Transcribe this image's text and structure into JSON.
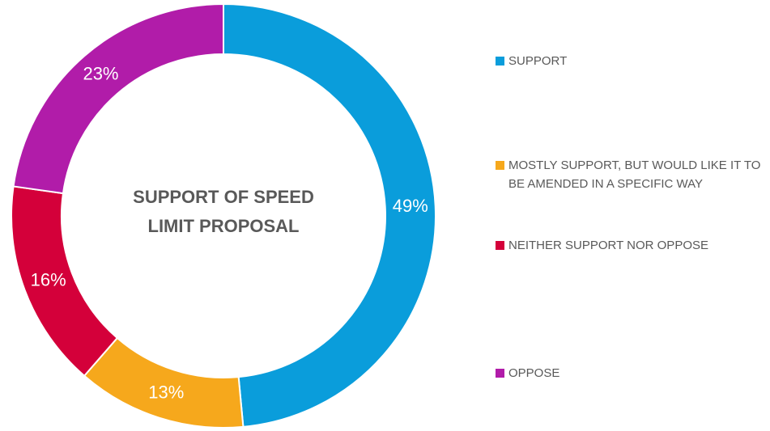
{
  "chart_data": {
    "type": "donut",
    "title": "SUPPORT OF SPEED LIMIT PROPOSAL",
    "categories": [
      "SUPPORT",
      "MOSTLY SUPPORT, BUT WOULD LIKE IT TO BE AMENDED IN A SPECIFIC WAY",
      "NEITHER SUPPORT NOR OPPOSE",
      "OPPOSE"
    ],
    "values": [
      49,
      13,
      16,
      23
    ],
    "value_labels": [
      "49%",
      "13%",
      "16%",
      "23%"
    ],
    "colors": [
      "#0a9ddb",
      "#f6a81c",
      "#d4003a",
      "#b11ca9"
    ],
    "legend": "right"
  }
}
